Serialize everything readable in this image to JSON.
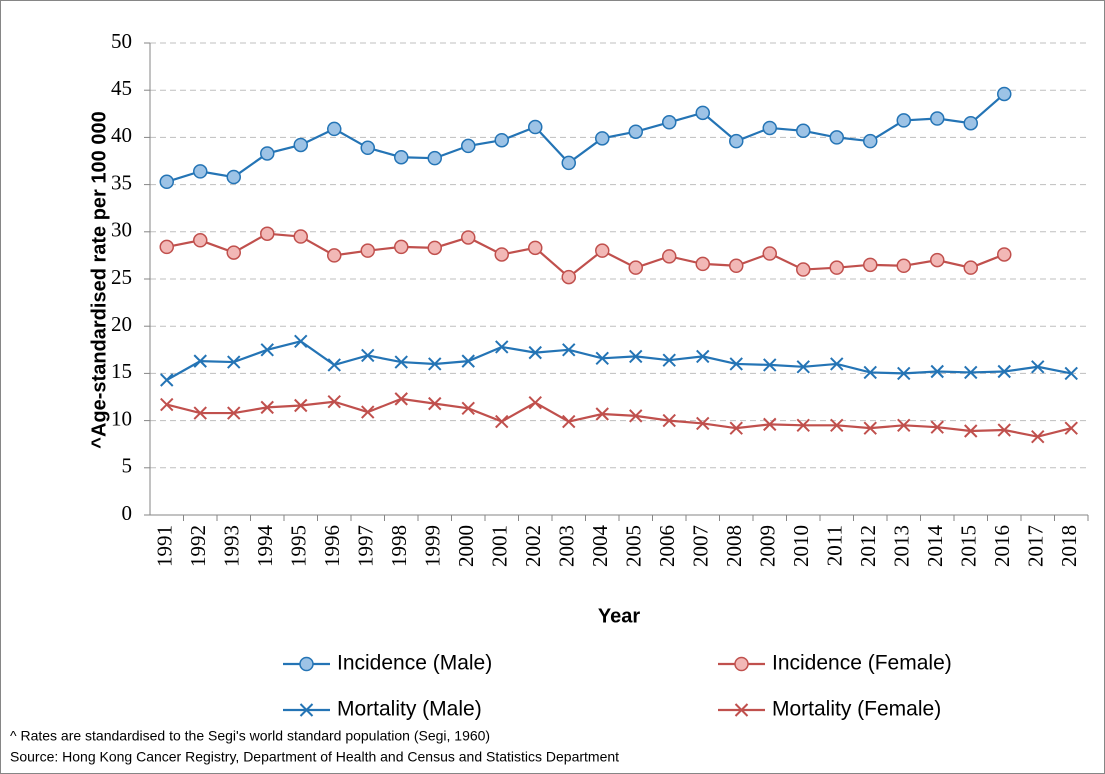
{
  "chart_data": {
    "type": "line",
    "y_label": "^Age-standardised rate per 100 000",
    "x_label": "Year",
    "categories": [
      "1991",
      "1992",
      "1993",
      "1994",
      "1995",
      "1996",
      "1997",
      "1998",
      "1999",
      "2000",
      "2001",
      "2002",
      "2003",
      "2004",
      "2005",
      "2006",
      "2007",
      "2008",
      "2009",
      "2010",
      "2011",
      "2012",
      "2013",
      "2014",
      "2015",
      "2016",
      "2017",
      "2018"
    ],
    "series": [
      {
        "name": "Incidence (Male)",
        "color": "#2474b5",
        "marker": "circle",
        "marker_fill": "#9dc3e6",
        "values": [
          35.3,
          36.4,
          35.8,
          38.3,
          39.2,
          40.9,
          38.9,
          37.9,
          37.8,
          39.1,
          39.7,
          41.1,
          37.3,
          39.9,
          40.6,
          41.6,
          42.6,
          39.6,
          41.0,
          40.7,
          40.0,
          39.6,
          41.8,
          42.0,
          41.5,
          44.6,
          null,
          null
        ]
      },
      {
        "name": "Incidence (Female)",
        "color": "#c0504d",
        "marker": "circle",
        "marker_fill": "#f2b8b6",
        "values": [
          28.4,
          29.1,
          27.8,
          29.8,
          29.5,
          27.5,
          28.0,
          28.4,
          28.3,
          29.4,
          27.6,
          28.3,
          25.2,
          28.0,
          26.2,
          27.4,
          26.6,
          26.4,
          27.7,
          26.0,
          26.2,
          26.5,
          26.4,
          27.0,
          26.2,
          27.6,
          null,
          null
        ]
      },
      {
        "name": "Mortality (Male)",
        "color": "#2474b5",
        "marker": "x",
        "values": [
          14.3,
          16.3,
          16.2,
          17.5,
          18.4,
          15.9,
          16.9,
          16.2,
          16.0,
          16.3,
          17.8,
          17.2,
          17.5,
          16.6,
          16.8,
          16.4,
          16.8,
          16.0,
          15.9,
          15.7,
          16.0,
          15.1,
          15.0,
          15.2,
          15.1,
          15.2,
          15.7,
          15.0
        ]
      },
      {
        "name": "Mortality (Female)",
        "color": "#c0504d",
        "marker": "x",
        "values": [
          11.7,
          10.8,
          10.8,
          11.4,
          11.6,
          12.0,
          10.9,
          12.3,
          11.8,
          11.3,
          9.9,
          11.9,
          9.9,
          10.7,
          10.5,
          10.0,
          9.7,
          9.2,
          9.6,
          9.5,
          9.5,
          9.2,
          9.5,
          9.3,
          8.9,
          9.0,
          8.3,
          9.2
        ]
      }
    ],
    "ylim": [
      0,
      50
    ],
    "yticks": [
      0,
      5,
      10,
      15,
      20,
      25,
      30,
      35,
      40,
      45,
      50
    ],
    "grid": true,
    "legend": "bottom",
    "annotations": [
      "^ Rates are standardised to the Segi's world standard population (Segi, 1960)",
      "Source: Hong Kong Cancer Registry, Department of Health and Census and Statistics Department"
    ]
  }
}
